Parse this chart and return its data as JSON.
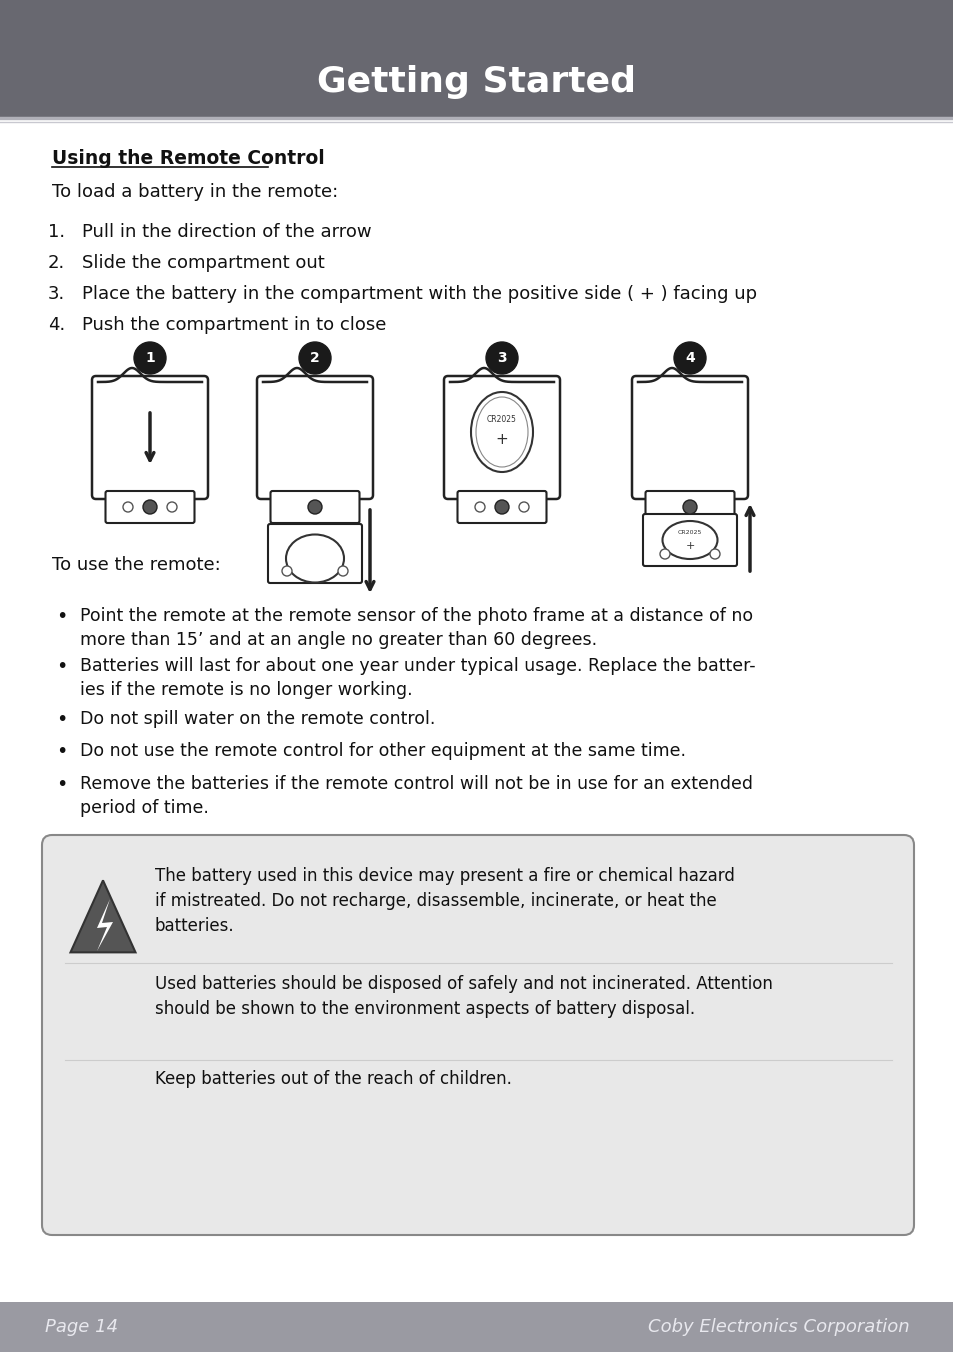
{
  "title": "Getting Started",
  "header_bg": "#686870",
  "header_text_color": "#ffffff",
  "footer_bg": "#9a9aa2",
  "footer_text_color": "#e8e8ee",
  "footer_left": "Page 14",
  "footer_right": "Coby Electronics Corporation",
  "body_bg": "#ffffff",
  "section_title": "Using the Remote Control",
  "intro_text": "To load a battery in the remote:",
  "steps": [
    "Pull in the direction of the arrow",
    "Slide the compartment out",
    "Place the battery in the compartment with the positive side ( + ) facing up",
    "Push the compartment in to close"
  ],
  "use_title": "To use the remote:",
  "bullets": [
    "Point the remote at the remote sensor of the photo frame at a distance of no\nmore than 15’ and at an angle no greater than 60 degrees.",
    "Batteries will last for about one year under typical usage. Replace the batter-\nies if the remote is no longer working.",
    "Do not spill water on the remote control.",
    "Do not use the remote control for other equipment at the same time.",
    "Remove the batteries if the remote control will not be in use for an extended\nperiod of time."
  ],
  "warning_text1": "The battery used in this device may present a fire or chemical hazard\nif mistreated. Do not recharge, disassemble, incinerate, or heat the\nbatteries.",
  "warning_text2": "Used batteries should be disposed of safely and not incinerated. Attention\nshould be shown to the environment aspects of battery disposal.",
  "warning_text3": "Keep batteries out of the reach of children.",
  "warning_bg": "#e8e8e8",
  "warning_border": "#888888",
  "divider_color": "#c0c0c8",
  "text_color": "#111111"
}
